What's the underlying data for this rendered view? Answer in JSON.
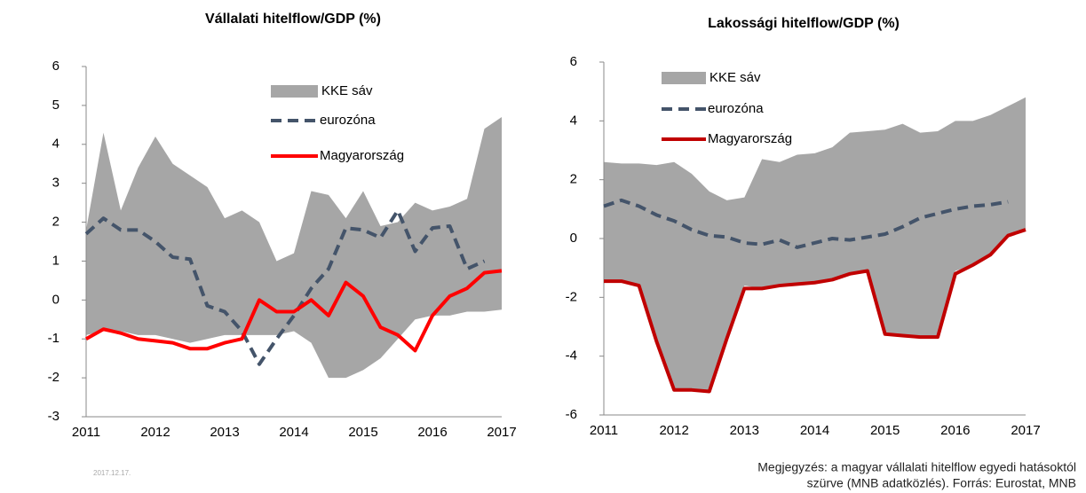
{
  "chart_data": [
    {
      "type": "line",
      "title": "Vállalati hitelflow/GDP (%)",
      "categories": [
        "2011",
        null,
        null,
        null,
        "2012",
        null,
        null,
        null,
        "2013",
        null,
        null,
        null,
        "2014",
        null,
        null,
        null,
        "2015",
        null,
        null,
        null,
        "2016",
        null,
        null,
        null,
        "2017"
      ],
      "ylim": [
        -3,
        6
      ],
      "yticks": [
        -3,
        -2,
        -1,
        0,
        1,
        2,
        3,
        4,
        5,
        6
      ],
      "legend": "upper center",
      "band": {
        "name": "KKE sáv",
        "color": "#a6a6a6",
        "upper": [
          1.8,
          4.3,
          2.3,
          3.4,
          4.2,
          3.5,
          3.2,
          2.9,
          2.1,
          2.3,
          2.0,
          1.0,
          1.2,
          2.8,
          2.7,
          2.1,
          2.8,
          1.9,
          2.0,
          2.5,
          2.3,
          2.4,
          2.6,
          4.4,
          4.7
        ],
        "lower": [
          -0.9,
          -0.8,
          -0.8,
          -0.9,
          -0.9,
          -1.0,
          -1.1,
          -1.0,
          -0.9,
          -0.9,
          -0.9,
          -0.9,
          -0.8,
          -1.1,
          -2.0,
          -2.0,
          -1.8,
          -1.5,
          -1.0,
          -0.5,
          -0.4,
          -0.4,
          -0.3,
          -0.3,
          -0.25
        ]
      },
      "series": [
        {
          "name": "eurozóna",
          "color": "#44546a",
          "dashed": true,
          "values": [
            1.7,
            2.1,
            1.8,
            1.8,
            1.5,
            1.1,
            1.05,
            -0.15,
            -0.3,
            -0.8,
            -1.65,
            -1.0,
            -0.4,
            0.3,
            0.8,
            1.85,
            1.8,
            1.6,
            2.3,
            1.25,
            1.85,
            1.9,
            0.8,
            1.0,
            null
          ]
        },
        {
          "name": "Magyarország",
          "color": "#ff0000",
          "dashed": false,
          "values": [
            -1.0,
            -0.75,
            -0.85,
            -1.0,
            -1.05,
            -1.1,
            -1.25,
            -1.25,
            -1.1,
            -1.0,
            0.0,
            -0.3,
            -0.3,
            0.0,
            -0.4,
            0.45,
            0.1,
            -0.7,
            -0.9,
            -1.3,
            -0.4,
            0.1,
            0.3,
            0.7,
            0.75
          ]
        }
      ]
    },
    {
      "type": "line",
      "title": "Lakossági hitelflow/GDP (%)",
      "categories": [
        "2011",
        null,
        null,
        null,
        "2012",
        null,
        null,
        null,
        "2013",
        null,
        null,
        null,
        "2014",
        null,
        null,
        null,
        "2015",
        null,
        null,
        null,
        "2016",
        null,
        null,
        null,
        "2017"
      ],
      "ylim": [
        -6,
        6
      ],
      "yticks": [
        -6,
        -4,
        -2,
        0,
        2,
        4,
        6
      ],
      "legend": "upper left",
      "band": {
        "name": "KKE sáv",
        "color": "#a6a6a6",
        "upper": [
          2.6,
          2.55,
          2.55,
          2.5,
          2.6,
          2.2,
          1.6,
          1.3,
          1.4,
          2.7,
          2.6,
          2.85,
          2.9,
          3.1,
          3.6,
          3.65,
          3.7,
          3.9,
          3.6,
          3.65,
          4.0,
          4.0,
          4.2,
          4.5,
          4.8
        ],
        "lower": [
          -1.4,
          -1.45,
          -1.6,
          -3.5,
          -5.2,
          -5.2,
          -5.2,
          -3.5,
          -1.6,
          -1.7,
          -1.6,
          -1.6,
          -1.5,
          -1.4,
          -1.2,
          -1.1,
          -3.3,
          -3.3,
          -3.3,
          -3.3,
          -1.1,
          -0.9,
          -0.6,
          0.1,
          0.3
        ]
      },
      "series": [
        {
          "name": "eurozóna",
          "color": "#44546a",
          "dashed": true,
          "values": [
            1.1,
            1.3,
            1.1,
            0.8,
            0.6,
            0.3,
            0.1,
            0.05,
            -0.15,
            -0.2,
            -0.05,
            -0.3,
            -0.15,
            0.0,
            -0.05,
            0.05,
            0.15,
            0.4,
            0.7,
            0.85,
            1.0,
            1.1,
            1.15,
            1.25,
            null
          ]
        },
        {
          "name": "Magyarország",
          "color": "#c00000",
          "dashed": false,
          "values": [
            -1.45,
            -1.45,
            -1.6,
            -3.5,
            -5.15,
            -5.15,
            -5.2,
            -3.4,
            -1.7,
            -1.7,
            -1.6,
            -1.55,
            -1.5,
            -1.4,
            -1.2,
            -1.1,
            -3.25,
            -3.3,
            -3.35,
            -3.35,
            -1.2,
            -0.9,
            -0.55,
            0.1,
            0.3
          ]
        }
      ]
    }
  ],
  "date": "2017.12.17.",
  "note": [
    "Megjegyzés: a magyar vállalati  hitelflow egyedi hatásoktól",
    "szürve (MNB adatközlés). Forrás: Eurostat, MNB"
  ]
}
